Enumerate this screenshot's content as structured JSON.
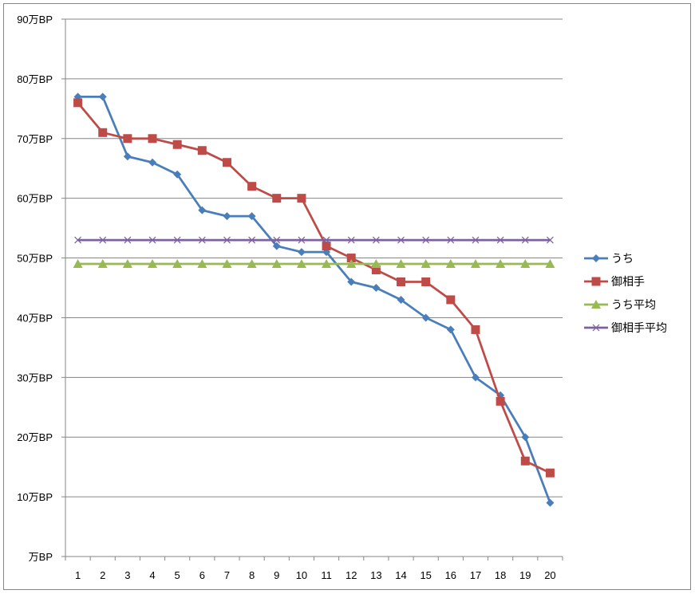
{
  "chart_data": {
    "type": "line",
    "title": "",
    "xlabel": "",
    "ylabel": "",
    "x": [
      1,
      2,
      3,
      4,
      5,
      6,
      7,
      8,
      9,
      10,
      11,
      12,
      13,
      14,
      15,
      16,
      17,
      18,
      19,
      20
    ],
    "ylim": [
      0,
      90
    ],
    "y_tick_values": [
      0,
      10,
      20,
      30,
      40,
      50,
      60,
      70,
      80,
      90
    ],
    "y_tick_labels": [
      "万BP",
      "10万BP",
      "20万BP",
      "30万BP",
      "40万BP",
      "50万BP",
      "60万BP",
      "70万BP",
      "80万BP",
      "90万BP"
    ],
    "grid": "horizontal",
    "legend_position": "right",
    "series": [
      {
        "name": "うち",
        "color": "#4A7EBB",
        "marker": "diamond",
        "values": [
          77,
          77,
          67,
          66,
          64,
          58,
          57,
          57,
          52,
          51,
          51,
          46,
          45,
          43,
          40,
          38,
          30,
          27,
          20,
          9
        ]
      },
      {
        "name": "御相手",
        "color": "#BE4B48",
        "marker": "square",
        "values": [
          76,
          71,
          70,
          70,
          69,
          68,
          66,
          62,
          60,
          60,
          52,
          50,
          48,
          46,
          46,
          43,
          38,
          26,
          16,
          14
        ]
      },
      {
        "name": "うち平均",
        "color": "#98B954",
        "marker": "triangle",
        "values": [
          49,
          49,
          49,
          49,
          49,
          49,
          49,
          49,
          49,
          49,
          49,
          49,
          49,
          49,
          49,
          49,
          49,
          49,
          49,
          49
        ]
      },
      {
        "name": "御相手平均",
        "color": "#7D60A0",
        "marker": "x",
        "values": [
          53,
          53,
          53,
          53,
          53,
          53,
          53,
          53,
          53,
          53,
          53,
          53,
          53,
          53,
          53,
          53,
          53,
          53,
          53,
          53
        ]
      }
    ]
  }
}
